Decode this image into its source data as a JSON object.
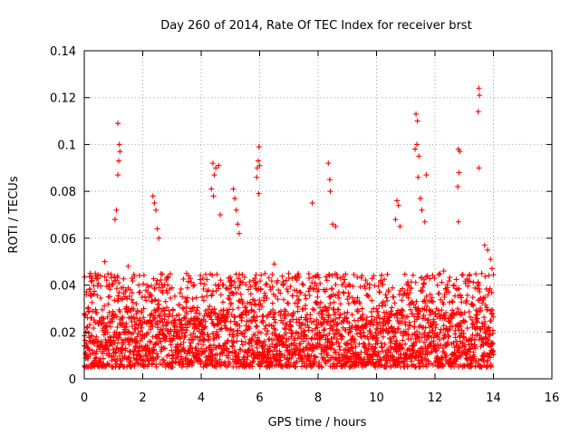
{
  "chart_data": {
    "type": "scatter",
    "title": "Day 260 of 2014, Rate Of TEC Index for receiver brst",
    "xlabel": "GPS time / hours",
    "ylabel": "ROTI / TECUs",
    "xlim": [
      0,
      16
    ],
    "ylim": [
      0,
      0.14
    ],
    "xticks": [
      0,
      2,
      4,
      6,
      8,
      10,
      12,
      14,
      16
    ],
    "xtick_labels": [
      "0",
      "2",
      "4",
      "6",
      "8",
      "10",
      "12",
      "14",
      "16"
    ],
    "yticks": [
      0,
      0.02,
      0.04,
      0.06,
      0.08,
      0.1,
      0.12,
      0.14
    ],
    "ytick_labels": [
      "0",
      "0.02",
      "0.04",
      "0.06",
      "0.08",
      "0.1",
      "0.12",
      "0.14"
    ],
    "grid": true,
    "marker": "plus",
    "color": "#ff0000",
    "data_range_hours": [
      0,
      14
    ],
    "baseline_band": [
      0.005,
      0.03
    ],
    "series": [
      {
        "name": "ROTI",
        "points": [
          [
            1.15,
            0.109
          ],
          [
            1.2,
            0.1
          ],
          [
            1.22,
            0.097
          ],
          [
            1.18,
            0.093
          ],
          [
            1.15,
            0.087
          ],
          [
            1.1,
            0.072
          ],
          [
            1.05,
            0.068
          ],
          [
            2.35,
            0.078
          ],
          [
            2.4,
            0.075
          ],
          [
            2.45,
            0.072
          ],
          [
            2.5,
            0.064
          ],
          [
            2.55,
            0.06
          ],
          [
            4.4,
            0.092
          ],
          [
            4.5,
            0.09
          ],
          [
            4.45,
            0.087
          ],
          [
            4.35,
            0.081
          ],
          [
            4.42,
            0.078
          ],
          [
            4.6,
            0.091
          ],
          [
            4.65,
            0.07
          ],
          [
            5.1,
            0.081
          ],
          [
            5.15,
            0.077
          ],
          [
            5.2,
            0.072
          ],
          [
            5.25,
            0.066
          ],
          [
            5.3,
            0.062
          ],
          [
            5.98,
            0.099
          ],
          [
            5.95,
            0.093
          ],
          [
            5.92,
            0.09
          ],
          [
            6.0,
            0.091
          ],
          [
            5.9,
            0.086
          ],
          [
            5.97,
            0.079
          ],
          [
            7.8,
            0.075
          ],
          [
            8.35,
            0.092
          ],
          [
            8.4,
            0.085
          ],
          [
            8.42,
            0.08
          ],
          [
            8.5,
            0.066
          ],
          [
            8.6,
            0.065
          ],
          [
            10.7,
            0.076
          ],
          [
            10.75,
            0.074
          ],
          [
            10.65,
            0.068
          ],
          [
            10.8,
            0.065
          ],
          [
            11.35,
            0.113
          ],
          [
            11.4,
            0.11
          ],
          [
            11.38,
            0.1
          ],
          [
            11.32,
            0.098
          ],
          [
            11.45,
            0.095
          ],
          [
            11.42,
            0.086
          ],
          [
            11.5,
            0.077
          ],
          [
            11.55,
            0.072
          ],
          [
            11.7,
            0.087
          ],
          [
            11.65,
            0.067
          ],
          [
            12.8,
            0.098
          ],
          [
            12.85,
            0.097
          ],
          [
            12.82,
            0.088
          ],
          [
            12.78,
            0.082
          ],
          [
            12.8,
            0.067
          ],
          [
            13.5,
            0.124
          ],
          [
            13.52,
            0.121
          ],
          [
            13.48,
            0.114
          ],
          [
            13.5,
            0.09
          ],
          [
            13.7,
            0.057
          ],
          [
            13.8,
            0.055
          ],
          [
            13.9,
            0.051
          ],
          [
            13.95,
            0.047
          ],
          [
            0.2,
            0.045
          ],
          [
            0.25,
            0.043
          ],
          [
            0.7,
            0.05
          ],
          [
            1.5,
            0.048
          ],
          [
            3.5,
            0.045
          ],
          [
            6.5,
            0.049
          ],
          [
            7.0,
            0.043
          ],
          [
            9.5,
            0.044
          ],
          [
            12.3,
            0.046
          ]
        ]
      }
    ]
  }
}
